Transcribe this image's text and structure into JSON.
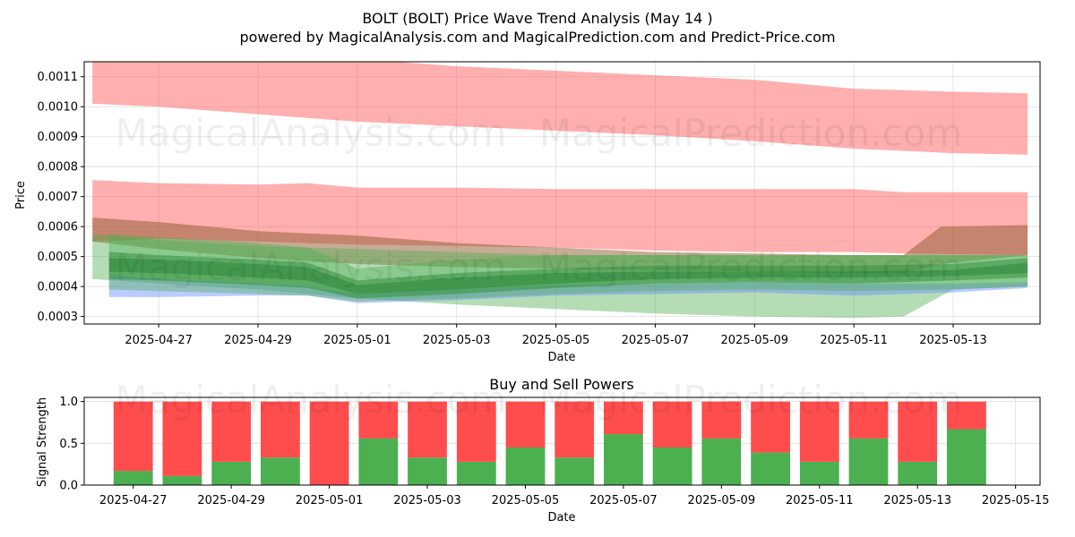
{
  "title": "BOLT (BOLT) Price Wave Trend Analysis (May 14 )",
  "subtitle": "powered by MagicalAnalysis.com and MagicalPrediction.com and Predict-Price.com",
  "watermarks": [
    "MagicalAnalysis.com",
    "MagicalPrediction.com"
  ],
  "chart_data": [
    {
      "type": "area",
      "title": "",
      "xlabel": "Date",
      "ylabel": "Price",
      "xlim": [
        "2025-04-25T12:00",
        "2025-05-14T18:00"
      ],
      "ylim": [
        0.000275,
        0.00115
      ],
      "y_ticks": [
        0.0003,
        0.0004,
        0.0005,
        0.0006,
        0.0007,
        0.0008,
        0.0009,
        0.001,
        0.0011
      ],
      "y_tick_labels": [
        "0.0003",
        "0.0004",
        "0.0005",
        "0.0006",
        "0.0007",
        "0.0008",
        "0.0009",
        "0.0010",
        "0.0011"
      ],
      "x_ticks": [
        "2025-04-27",
        "2025-04-29",
        "2025-05-01",
        "2025-05-03",
        "2025-05-05",
        "2025-05-07",
        "2025-05-09",
        "2025-05-11",
        "2025-05-13"
      ],
      "grid": true,
      "bands": [
        {
          "color": "#ff4d4d",
          "opacity": 0.45,
          "x": [
            "2025-04-25T16:00",
            "2025-04-27",
            "2025-04-29",
            "2025-05-01",
            "2025-05-03",
            "2025-05-05",
            "2025-05-07",
            "2025-05-09",
            "2025-05-11",
            "2025-05-13",
            "2025-05-14T12:00"
          ],
          "lower": [
            0.00101,
            0.001,
            0.000975,
            0.00095,
            0.000935,
            0.00092,
            0.000905,
            0.000885,
            0.00086,
            0.000845,
            0.00084
          ],
          "upper": [
            0.00116,
            0.00116,
            0.00116,
            0.00116,
            0.001135,
            0.00112,
            0.001105,
            0.00109,
            0.00106,
            0.00105,
            0.001045
          ]
        },
        {
          "color": "#ff4d4d",
          "opacity": 0.45,
          "x": [
            "2025-04-25T16:00",
            "2025-04-27",
            "2025-04-29",
            "2025-04-30",
            "2025-05-01",
            "2025-05-03",
            "2025-05-05",
            "2025-05-07",
            "2025-05-09",
            "2025-05-11",
            "2025-05-12",
            "2025-05-14T12:00"
          ],
          "lower": [
            0.00055,
            0.00056,
            0.00055,
            0.000545,
            0.00054,
            0.000535,
            0.00053,
            0.00052,
            0.000515,
            0.000515,
            0.00051,
            0.000505
          ],
          "upper": [
            0.000755,
            0.000745,
            0.00074,
            0.000745,
            0.00073,
            0.00073,
            0.000725,
            0.000725,
            0.000725,
            0.000725,
            0.000715,
            0.000715
          ]
        },
        {
          "color": "#8b5a2b",
          "opacity": 0.5,
          "x": [
            "2025-04-25T16:00",
            "2025-04-27",
            "2025-04-29",
            "2025-05-01",
            "2025-05-03",
            "2025-05-05",
            "2025-05-07",
            "2025-05-09",
            "2025-05-11",
            "2025-05-12",
            "2025-05-12T18:00",
            "2025-05-14T12:00"
          ],
          "lower": [
            0.00055,
            0.000525,
            0.000495,
            0.000475,
            0.000465,
            0.00046,
            0.000455,
            0.00045,
            0.000445,
            0.000445,
            0.000475,
            0.000505
          ],
          "upper": [
            0.00063,
            0.000615,
            0.000585,
            0.00057,
            0.000545,
            0.00053,
            0.000515,
            0.00051,
            0.000505,
            0.000505,
            0.0006,
            0.000605
          ]
        },
        {
          "color": "#4caf50",
          "opacity": 0.42,
          "x": [
            "2025-04-25T16:00",
            "2025-04-27",
            "2025-04-29",
            "2025-05-01",
            "2025-05-03",
            "2025-05-05",
            "2025-05-07",
            "2025-05-09",
            "2025-05-11",
            "2025-05-12",
            "2025-05-13",
            "2025-05-14T12:00"
          ],
          "lower": [
            0.000425,
            0.00041,
            0.00039,
            0.00036,
            0.00034,
            0.000325,
            0.00031,
            0.0003,
            0.000295,
            0.0003,
            0.00039,
            0.0004
          ],
          "upper": [
            0.000575,
            0.000555,
            0.000535,
            0.000525,
            0.000515,
            0.000505,
            0.000505,
            0.000505,
            0.000505,
            0.000505,
            0.000505,
            0.000505
          ]
        },
        {
          "color": "#6b8cff",
          "opacity": 0.45,
          "x": [
            "2025-04-26",
            "2025-04-27",
            "2025-04-29",
            "2025-04-30",
            "2025-05-01",
            "2025-05-03",
            "2025-05-05",
            "2025-05-07",
            "2025-05-09",
            "2025-05-11",
            "2025-05-13",
            "2025-05-14T12:00"
          ],
          "lower": [
            0.000365,
            0.000365,
            0.00037,
            0.00037,
            0.000345,
            0.000355,
            0.00037,
            0.000375,
            0.00038,
            0.00037,
            0.00038,
            0.000395
          ],
          "upper": [
            0.00044,
            0.000425,
            0.00041,
            0.0004,
            0.000375,
            0.00039,
            0.000405,
            0.00041,
            0.000415,
            0.00041,
            0.00041,
            0.000415
          ]
        },
        {
          "color": "#4caf50",
          "opacity": 0.4,
          "x": [
            "2025-04-26",
            "2025-04-27",
            "2025-04-29",
            "2025-04-30",
            "2025-05-01",
            "2025-05-03",
            "2025-05-05",
            "2025-05-07",
            "2025-05-09",
            "2025-05-11",
            "2025-05-13",
            "2025-05-14T12:00"
          ],
          "lower": [
            0.00039,
            0.000385,
            0.000375,
            0.00037,
            0.00035,
            0.00036,
            0.000375,
            0.000385,
            0.00039,
            0.000385,
            0.00039,
            0.0004
          ],
          "upper": [
            0.000575,
            0.000565,
            0.000545,
            0.00053,
            0.00046,
            0.00049,
            0.000505,
            0.000505,
            0.000505,
            0.000505,
            0.000505,
            0.000505
          ]
        },
        {
          "color": "#2e8b3a",
          "opacity": 0.5,
          "x": [
            "2025-04-26",
            "2025-04-27",
            "2025-04-29",
            "2025-04-30",
            "2025-05-01",
            "2025-05-03",
            "2025-05-05",
            "2025-05-07",
            "2025-05-09",
            "2025-05-11",
            "2025-05-13",
            "2025-05-14T12:00"
          ],
          "lower": [
            0.000425,
            0.00042,
            0.000405,
            0.000395,
            0.00036,
            0.000375,
            0.000395,
            0.00041,
            0.000415,
            0.00041,
            0.00042,
            0.00043
          ],
          "upper": [
            0.000515,
            0.000505,
            0.00049,
            0.00048,
            0.00042,
            0.000445,
            0.00046,
            0.00047,
            0.00047,
            0.00047,
            0.000475,
            0.000495
          ]
        },
        {
          "color": "#1f7a2c",
          "opacity": 0.4,
          "x": [
            "2025-04-26",
            "2025-04-27",
            "2025-04-29",
            "2025-04-30",
            "2025-05-01",
            "2025-05-03",
            "2025-05-05",
            "2025-05-07",
            "2025-05-09",
            "2025-05-11",
            "2025-05-13",
            "2025-05-14T12:00"
          ],
          "lower": [
            0.00045,
            0.000445,
            0.00043,
            0.00042,
            0.000375,
            0.00039,
            0.00041,
            0.000425,
            0.00043,
            0.00043,
            0.000435,
            0.000445
          ],
          "upper": [
            0.000495,
            0.00049,
            0.000475,
            0.000465,
            0.000405,
            0.00043,
            0.000445,
            0.00045,
            0.00045,
            0.00045,
            0.000455,
            0.00048
          ]
        }
      ]
    },
    {
      "type": "bar",
      "title": "Buy and Sell Powers",
      "xlabel": "Date",
      "ylabel": "Signal Strength",
      "xlim": [
        "2025-04-26T00:00",
        "2025-05-15T12:00"
      ],
      "ylim": [
        0,
        1.05
      ],
      "y_ticks": [
        0.0,
        0.5,
        1.0
      ],
      "y_tick_labels": [
        "0.0",
        "0.5",
        "1.0"
      ],
      "x_ticks": [
        "2025-04-27",
        "2025-04-29",
        "2025-05-01",
        "2025-05-03",
        "2025-05-05",
        "2025-05-07",
        "2025-05-09",
        "2025-05-11",
        "2025-05-13",
        "2025-05-15"
      ],
      "grid": true,
      "categories": [
        "2025-04-27",
        "2025-04-28",
        "2025-04-29",
        "2025-04-30",
        "2025-05-01",
        "2025-05-02",
        "2025-05-03",
        "2025-05-04",
        "2025-05-05",
        "2025-05-06",
        "2025-05-07",
        "2025-05-08",
        "2025-05-09",
        "2025-05-10",
        "2025-05-11",
        "2025-05-12",
        "2025-05-13",
        "2025-05-14"
      ],
      "series": [
        {
          "color": "#4caf50",
          "values": [
            0.17,
            0.11,
            0.28,
            0.33,
            0.0,
            0.56,
            0.33,
            0.28,
            0.45,
            0.33,
            0.61,
            0.45,
            0.56,
            0.39,
            0.28,
            0.56,
            0.28,
            0.67
          ]
        },
        {
          "color": "#ff4d4d",
          "values": [
            0.83,
            0.89,
            0.72,
            0.67,
            1.0,
            0.44,
            0.67,
            0.72,
            0.55,
            0.67,
            0.39,
            0.55,
            0.44,
            0.61,
            0.72,
            0.44,
            0.72,
            0.33
          ]
        }
      ]
    }
  ]
}
